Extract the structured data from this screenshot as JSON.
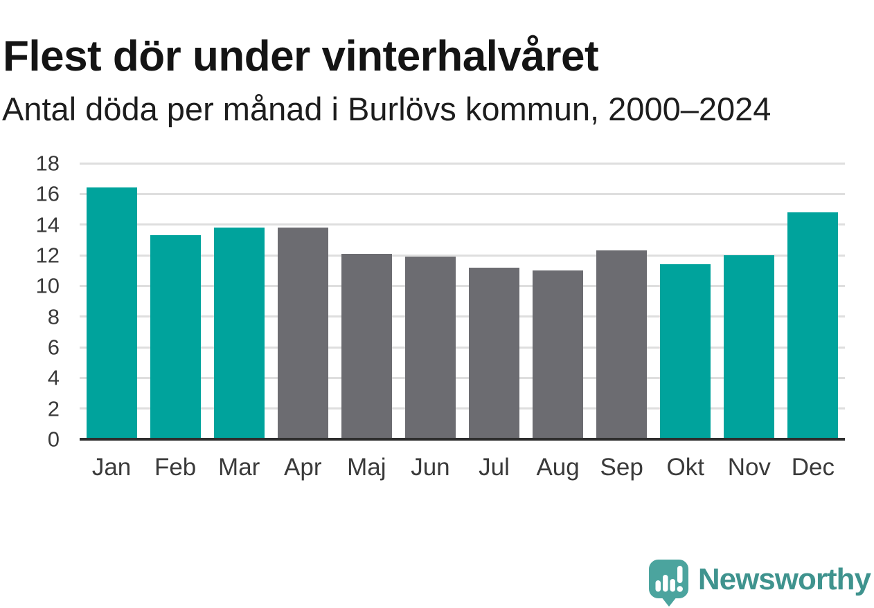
{
  "header": {
    "title": "Flest dör under vinterhalvåret",
    "subtitle": "Antal döda per månad i Burlövs kommun, 2000–2024"
  },
  "chart_data": {
    "type": "bar",
    "title": "Flest dör under vinterhalvåret",
    "subtitle": "Antal döda per månad i Burlövs kommun, 2000–2024",
    "categories": [
      "Jan",
      "Feb",
      "Mar",
      "Apr",
      "Maj",
      "Jun",
      "Jul",
      "Aug",
      "Sep",
      "Okt",
      "Nov",
      "Dec"
    ],
    "values": [
      16.4,
      13.3,
      13.8,
      13.8,
      12.1,
      11.9,
      11.2,
      11.0,
      12.3,
      11.4,
      12.0,
      14.8
    ],
    "highlighted": [
      true,
      true,
      true,
      false,
      false,
      false,
      false,
      false,
      false,
      true,
      true,
      true
    ],
    "xlabel": "",
    "ylabel": "",
    "ylim": [
      0,
      18
    ],
    "yticks": [
      0,
      2,
      4,
      6,
      8,
      10,
      12,
      14,
      16,
      18
    ],
    "grid": "horizontal",
    "legend": "none"
  },
  "colors": {
    "highlight": "#00a39c",
    "muted": "#6c6c71",
    "gridline": "#dedede",
    "axis": "#2d2d2d",
    "tick_label": "#3a3a3a",
    "title_text": "#141414",
    "brand_text": "#3f938e",
    "icon_fill": "#4ba49e"
  },
  "footer": {
    "brand": "Newsworthy"
  }
}
